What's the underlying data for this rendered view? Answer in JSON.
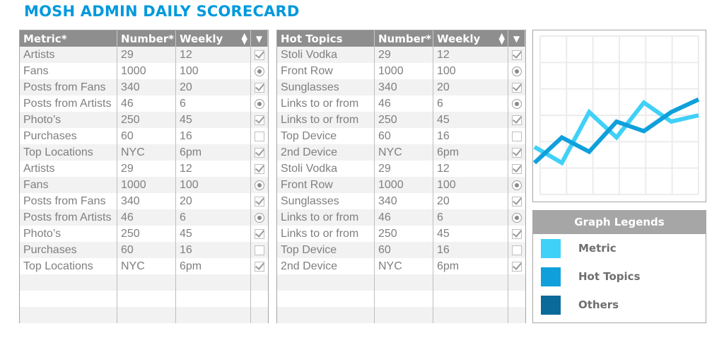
{
  "title": "MOSH ADMIN DAILY SCORECARD",
  "metric_table": {
    "headers": [
      "Metric*",
      "Number*",
      "Weekly"
    ],
    "rows": [
      {
        "label": "Artists",
        "number": "29",
        "weekly": "12",
        "mark": "check-on"
      },
      {
        "label": "Fans",
        "number": "1000",
        "weekly": "100",
        "mark": "radio-on"
      },
      {
        "label": "Posts from Fans",
        "number": "340",
        "weekly": "20",
        "mark": "check-on"
      },
      {
        "label": "Posts from Artists",
        "number": "46",
        "weekly": "6",
        "mark": "radio-on"
      },
      {
        "label": "Photo’s",
        "number": "250",
        "weekly": "45",
        "mark": "check-on"
      },
      {
        "label": "Purchases",
        "number": "60",
        "weekly": "16",
        "mark": "check-off"
      },
      {
        "label": "Top Locations",
        "number": "NYC",
        "weekly": "6pm",
        "mark": "check-on"
      },
      {
        "label": "Artists",
        "number": "29",
        "weekly": "12",
        "mark": "check-on"
      },
      {
        "label": "Fans",
        "number": "1000",
        "weekly": "100",
        "mark": "radio-on"
      },
      {
        "label": "Posts from Fans",
        "number": "340",
        "weekly": "20",
        "mark": "check-on"
      },
      {
        "label": "Posts from Artists",
        "number": "46",
        "weekly": "6",
        "mark": "radio-on"
      },
      {
        "label": "Photo’s",
        "number": "250",
        "weekly": "45",
        "mark": "check-on"
      },
      {
        "label": "Purchases",
        "number": "60",
        "weekly": "16",
        "mark": "check-off"
      },
      {
        "label": "Top Locations",
        "number": "NYC",
        "weekly": "6pm",
        "mark": "check-on"
      },
      {
        "label": "",
        "number": "",
        "weekly": "",
        "mark": "none"
      },
      {
        "label": "",
        "number": "",
        "weekly": "",
        "mark": "none"
      },
      {
        "label": "",
        "number": "",
        "weekly": "",
        "mark": "none"
      }
    ]
  },
  "topics_table": {
    "headers": [
      "Hot Topics",
      "Number*",
      "Weekly"
    ],
    "rows": [
      {
        "label": "Stoli Vodka",
        "number": "29",
        "weekly": "12",
        "mark": "check-on"
      },
      {
        "label": "Front Row",
        "number": "1000",
        "weekly": "100",
        "mark": "radio-on"
      },
      {
        "label": "Sunglasses",
        "number": "340",
        "weekly": "20",
        "mark": "check-on"
      },
      {
        "label": "Links to or from",
        "number": "46",
        "weekly": "6",
        "mark": "radio-on"
      },
      {
        "label": "Links to or from",
        "number": "250",
        "weekly": "45",
        "mark": "check-on"
      },
      {
        "label": "Top Device",
        "number": "60",
        "weekly": "16",
        "mark": "check-off"
      },
      {
        "label": "2nd Device",
        "number": "NYC",
        "weekly": "6pm",
        "mark": "check-on"
      },
      {
        "label": "Stoli Vodka",
        "number": "29",
        "weekly": "12",
        "mark": "check-on"
      },
      {
        "label": "Front Row",
        "number": "1000",
        "weekly": "100",
        "mark": "radio-on"
      },
      {
        "label": "Sunglasses",
        "number": "340",
        "weekly": "20",
        "mark": "check-on"
      },
      {
        "label": "Links to or from",
        "number": "46",
        "weekly": "6",
        "mark": "radio-on"
      },
      {
        "label": "Links to or from",
        "number": "250",
        "weekly": "45",
        "mark": "check-on"
      },
      {
        "label": "Top Device",
        "number": "60",
        "weekly": "16",
        "mark": "check-off"
      },
      {
        "label": "2nd Device",
        "number": "NYC",
        "weekly": "6pm",
        "mark": "check-on"
      },
      {
        "label": "",
        "number": "",
        "weekly": "",
        "mark": "none"
      },
      {
        "label": "",
        "number": "",
        "weekly": "",
        "mark": "none"
      },
      {
        "label": "",
        "number": "",
        "weekly": "",
        "mark": "none"
      }
    ]
  },
  "chart_data": {
    "type": "line",
    "title": "",
    "xlabel": "",
    "ylabel": "",
    "x": [
      1,
      2,
      3,
      4,
      5,
      6,
      7
    ],
    "ylim": [
      0,
      100
    ],
    "grid": true,
    "series": [
      {
        "name": "Metric",
        "color": "#3fd1f7",
        "values": [
          30,
          20,
          52,
          36,
          58,
          46,
          50
        ]
      },
      {
        "name": "Hot Topics",
        "color": "#0fa0dc",
        "values": [
          20,
          36,
          27,
          46,
          40,
          52,
          60
        ]
      }
    ]
  },
  "legend": {
    "title": "Graph Legends",
    "items": [
      {
        "label": "Metric",
        "color": "#3fd1f7"
      },
      {
        "label": "Hot Topics",
        "color": "#0fa0dc"
      },
      {
        "label": "Others",
        "color": "#0a6a9a"
      }
    ]
  }
}
